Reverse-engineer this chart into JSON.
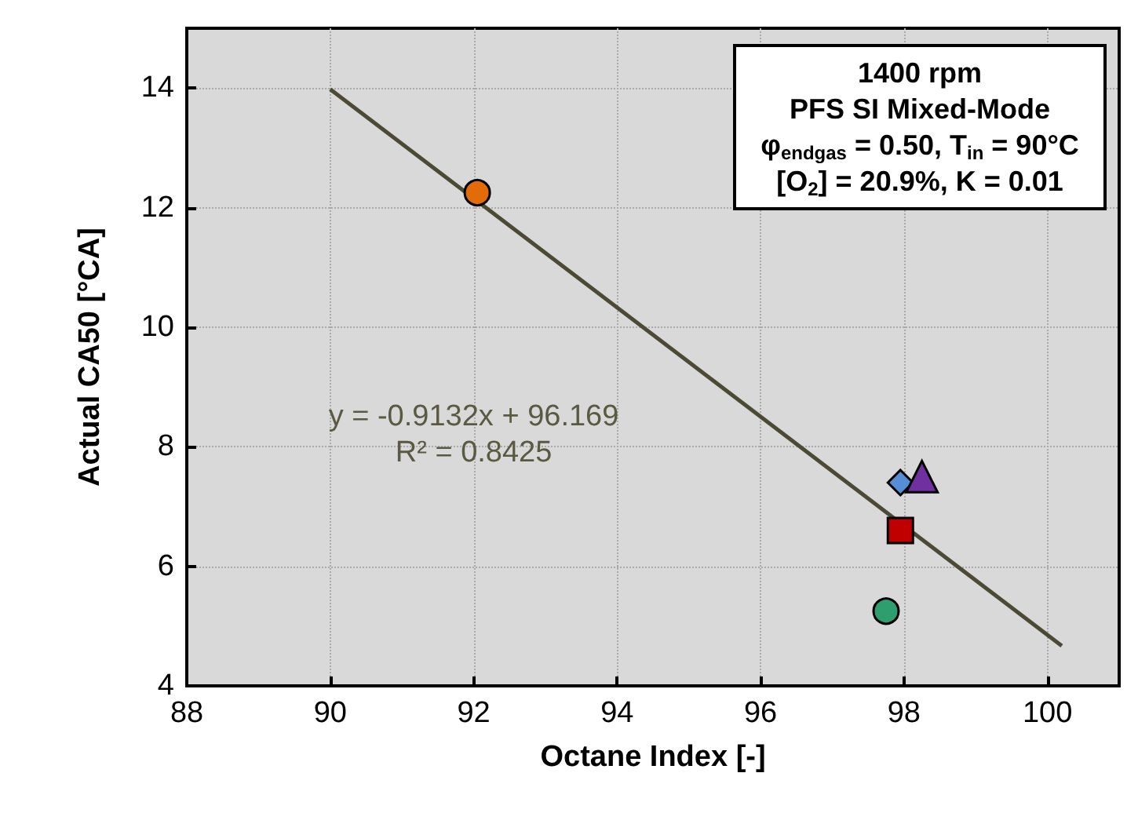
{
  "chart_data": {
    "type": "scatter",
    "xlabel": "Octane Index [-]",
    "ylabel": "Actual CA50 [°CA]",
    "xlim": [
      88,
      101
    ],
    "xticks": [
      88,
      90,
      92,
      94,
      96,
      98,
      100
    ],
    "ylim": [
      4,
      15
    ],
    "yticks": [
      4,
      6,
      8,
      10,
      12,
      14
    ],
    "grid": true,
    "series": [
      {
        "type": "line",
        "color": "#4d4a33",
        "x": [
          90,
          100.2
        ],
        "values": [
          13.98,
          4.67
        ]
      },
      {
        "color": "#e36c09",
        "marker": "circle",
        "x": [
          92.05
        ],
        "values": [
          12.25
        ]
      },
      {
        "color": "#558ed5",
        "marker": "diamond",
        "x": [
          97.95
        ],
        "values": [
          7.4
        ]
      },
      {
        "color": "#7030a0",
        "marker": "triangle",
        "x": [
          98.25
        ],
        "values": [
          7.5
        ]
      },
      {
        "color": "#c00000",
        "marker": "square",
        "x": [
          97.95
        ],
        "values": [
          6.6
        ]
      },
      {
        "color": "#2e9e6e",
        "marker": "circle",
        "x": [
          97.75
        ],
        "values": [
          5.25
        ]
      }
    ],
    "annotations": [
      "1400 rpm\nPFS SI Mixed-Mode\nφ$_{endgas}$ = 0.50, T$_{in}$ = 90°C\n[O$_{2}$] = 20.9%, K = 0.01",
      "y = -0.9132x + 96.169\nR² = 0.8425"
    ]
  }
}
